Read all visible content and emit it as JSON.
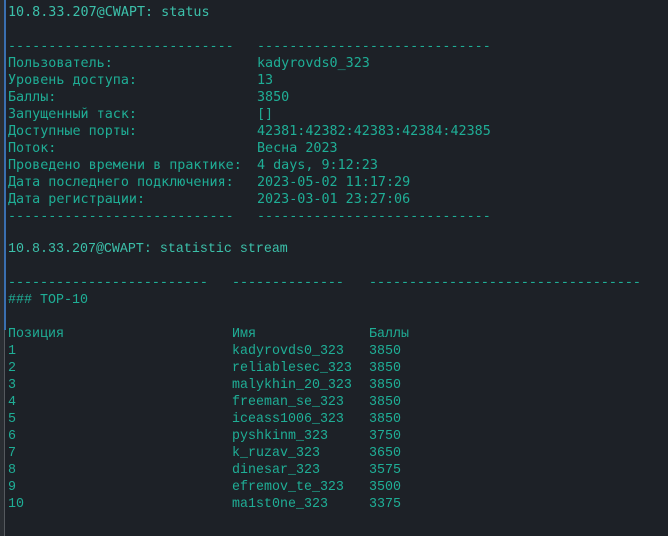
{
  "status_command": "10.8.33.207@CWAPT: status",
  "status_sep_left": "----------------------------",
  "status_sep_right": "-----------------------------",
  "status_rows": [
    {
      "label": "Пользователь:",
      "value": "kadyrovds0_323"
    },
    {
      "label": "Уровень доступа:",
      "value": "13"
    },
    {
      "label": "Баллы:",
      "value": "3850"
    },
    {
      "label": "Запущенный таск:",
      "value": "[]"
    },
    {
      "label": "Доступные порты:",
      "value": "42381:42382:42383:42384:42385"
    },
    {
      "label": "Поток:",
      "value": "Весна 2023"
    },
    {
      "label": "Проведено времени в практике:",
      "value": "4 days, 9:12:23"
    },
    {
      "label": "Дата последнего подключения:",
      "value": "2023-05-02 11:17:29"
    },
    {
      "label": "Дата регистрации:",
      "value": "2023-03-01 23:27:06"
    }
  ],
  "stream_command": "10.8.33.207@CWAPT: statistic stream",
  "stream_sep": [
    "-------------------------",
    "--------------",
    "----------------------------------"
  ],
  "top_title": "### TOP-10",
  "columns": [
    "Позиция",
    "Имя",
    "Баллы"
  ],
  "rows": [
    [
      "1",
      "kadyrovds0_323",
      "3850"
    ],
    [
      "2",
      "reliablesec_323",
      "3850"
    ],
    [
      "3",
      "malykhin_20_323",
      "3850"
    ],
    [
      "4",
      "freeman_se_323",
      "3850"
    ],
    [
      "5",
      "iceass1006_323",
      "3850"
    ],
    [
      "6",
      "pyshkinm_323",
      "3750"
    ],
    [
      "7",
      "k_ruzav_323",
      "3650"
    ],
    [
      "8",
      "dinesar_323",
      "3575"
    ],
    [
      "9",
      "efremov_te_323",
      "3500"
    ],
    [
      "10",
      "ma1st0ne_323",
      "3375"
    ]
  ]
}
